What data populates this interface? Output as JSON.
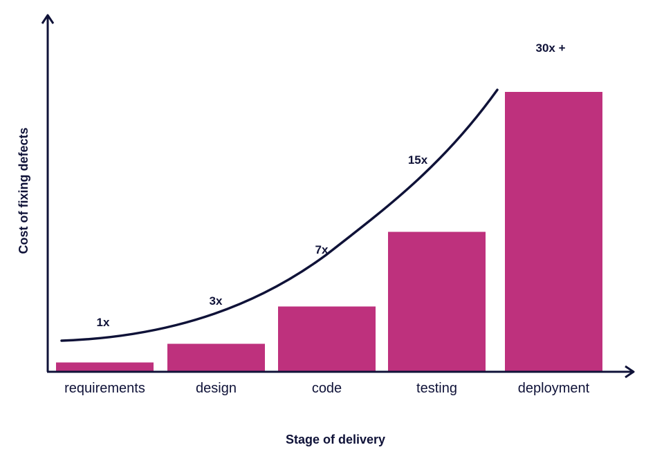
{
  "chart_data": {
    "type": "bar",
    "title": "",
    "xlabel": "Stage of delivery",
    "ylabel": "Cost of fixing defects",
    "categories": [
      "requirements",
      "design",
      "code",
      "testing",
      "deployment"
    ],
    "values": [
      1,
      3,
      7,
      15,
      30
    ],
    "data_labels": [
      "1x",
      "3x",
      "7x",
      "15x",
      "30x +"
    ],
    "ylim": [
      0,
      30
    ],
    "grid": false,
    "legend": "none",
    "overlay": "curve"
  },
  "colors": {
    "bar": "#be317d",
    "axis": "#0f1238",
    "curve": "#0f1238",
    "text": "#0f1238"
  }
}
